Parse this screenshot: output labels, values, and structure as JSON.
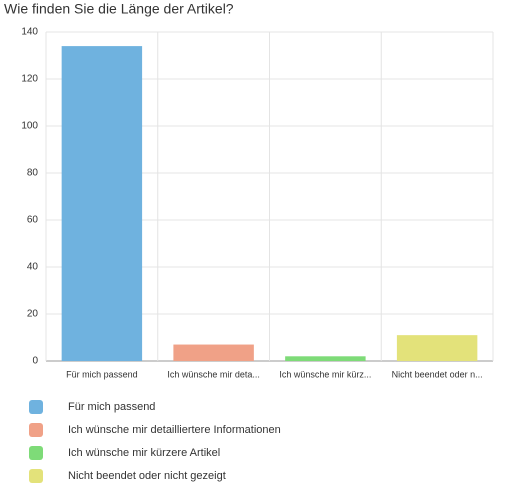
{
  "chart_data": {
    "type": "bar",
    "title": "Wie finden Sie die Länge der Artikel?",
    "categories": [
      "Für mich passend",
      "Ich wünsche mir deta...",
      "Ich wünsche mir kürz...",
      "Nicht beendet oder n..."
    ],
    "values": [
      134,
      7,
      2,
      11
    ],
    "colors": [
      "#6fb2df",
      "#f0a187",
      "#7edb78",
      "#e3e27a"
    ],
    "legend": [
      "Für mich passend",
      "Ich wünsche mir detailliertere Informationen",
      "Ich wünsche mir kürzere Artikel",
      "Nicht beendet oder nicht gezeigt"
    ],
    "ylim": [
      0,
      140
    ],
    "yticks": [
      0,
      20,
      40,
      60,
      80,
      100,
      120,
      140
    ],
    "grid": true
  }
}
